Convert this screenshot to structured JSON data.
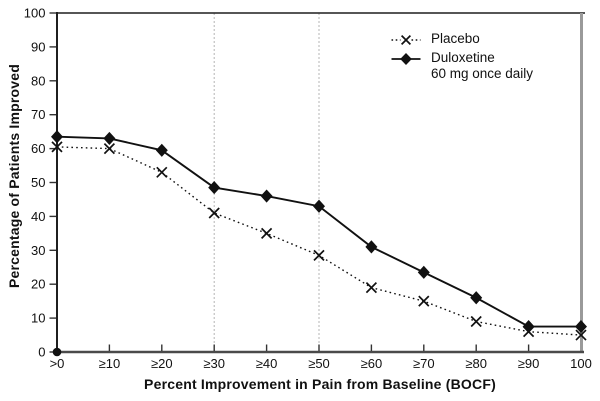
{
  "figure": {
    "background": "#ffffff",
    "axis_color": "#1f1f1f",
    "bottom_axis_color": "#4a4a4a",
    "right_border_color": "#9a9a9a",
    "grid_color": "#b5b5b5",
    "series_color": "#111111"
  },
  "chart_data": {
    "type": "line",
    "title": "",
    "xlabel": "Percent Improvement in Pain from Baseline (BOCF)",
    "ylabel": "Percentage of Patients Improved",
    "categories": [
      ">0",
      "≥10",
      "≥20",
      "≥30",
      "≥40",
      "≥50",
      "≥60",
      "≥70",
      "≥80",
      "≥90",
      "100"
    ],
    "y_ticks": [
      0,
      10,
      20,
      30,
      40,
      50,
      60,
      70,
      80,
      90,
      100
    ],
    "ylim": [
      0,
      100
    ],
    "grid": "vertical-reference-lines-only",
    "grid_vertical_at": [
      "≥30",
      "≥50"
    ],
    "legend_position": "top-right-inside",
    "series": [
      {
        "name": "Placebo",
        "legend_lines": [
          "Placebo"
        ],
        "marker": "x",
        "line_style": "dotted",
        "values": [
          60.5,
          60,
          53,
          41,
          35,
          28.5,
          19,
          15,
          9,
          6,
          5
        ]
      },
      {
        "name": "Duloxetine 60 mg once daily",
        "legend_lines": [
          "Duloxetine",
          "60 mg once daily"
        ],
        "marker": "diamond",
        "line_style": "solid",
        "values": [
          63.5,
          63,
          59.5,
          48.5,
          46,
          43,
          31,
          23.5,
          16,
          7.5,
          7.5
        ]
      }
    ]
  }
}
